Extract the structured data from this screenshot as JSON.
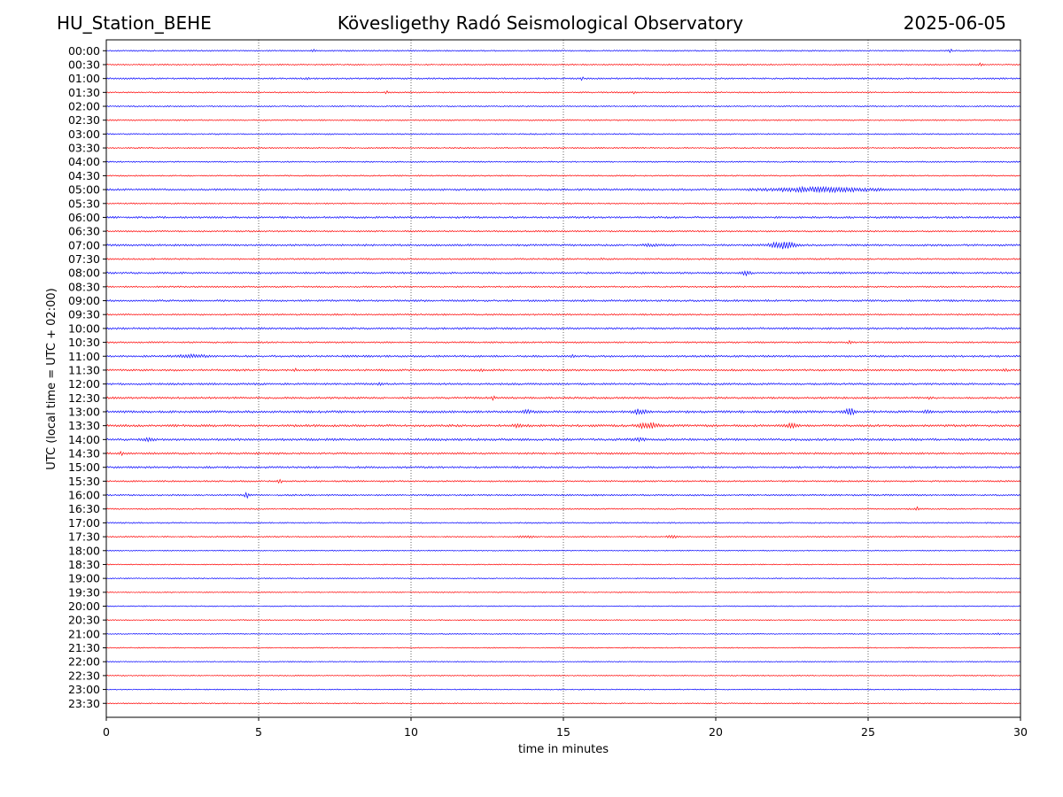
{
  "header": {
    "station": "HU_Station_BEHE",
    "title": "Kövesligethy Radó Seismological Observatory",
    "date": "2025-06-05"
  },
  "chart_data": {
    "type": "line",
    "chart_kind": "helicorder",
    "xlabel": "time in minutes",
    "ylabel": "UTC (local time = UTC + 02:00)",
    "xlim": [
      0,
      30
    ],
    "x_ticks": [
      "0",
      "5",
      "10",
      "15",
      "20",
      "25",
      "30"
    ],
    "x_grid": "dotted vertical lines at 5, 10, 15, 20, 25",
    "line_colors": [
      "#0000ff",
      "#ff0000"
    ],
    "color_rule": "alternating per row: full hours blue, half hours red",
    "rows": [
      "00:00",
      "00:30",
      "01:00",
      "01:30",
      "02:00",
      "02:30",
      "03:00",
      "03:30",
      "04:00",
      "04:30",
      "05:00",
      "05:30",
      "06:00",
      "06:30",
      "07:00",
      "07:30",
      "08:00",
      "08:30",
      "09:00",
      "09:30",
      "10:00",
      "10:30",
      "11:00",
      "11:30",
      "12:00",
      "12:30",
      "13:00",
      "13:30",
      "14:00",
      "14:30",
      "15:00",
      "15:30",
      "16:00",
      "16:30",
      "17:00",
      "17:30",
      "18:00",
      "18:30",
      "19:00",
      "19:30",
      "20:00",
      "20:30",
      "21:00",
      "21:30",
      "22:00",
      "22:30",
      "23:00",
      "23:30"
    ],
    "base_noise": [
      1.5,
      1.5,
      1.8,
      1.5,
      1.5,
      1.5,
      1.5,
      1.5,
      1.5,
      1.5,
      2.2,
      1.5,
      2.2,
      1.8,
      2.2,
      1.8,
      2.2,
      1.8,
      2.2,
      1.8,
      2.2,
      1.8,
      2.2,
      2.2,
      2.2,
      2.2,
      2.6,
      2.6,
      2.6,
      2.2,
      2.2,
      1.8,
      1.8,
      1.5,
      1.5,
      1.5,
      1.2,
      1.2,
      1.2,
      1.2,
      1.2,
      1.2,
      1.2,
      1.2,
      1.2,
      1.2,
      1.2,
      1.2
    ],
    "events": [
      {
        "row": "00:00",
        "t": 6.8,
        "amp": 3,
        "dur": 0.1
      },
      {
        "row": "00:00",
        "t": 27.7,
        "amp": 4,
        "dur": 0.1
      },
      {
        "row": "00:30",
        "t": 28.7,
        "amp": 3,
        "dur": 0.1
      },
      {
        "row": "01:00",
        "t": 6.6,
        "amp": 3,
        "dur": 0.1
      },
      {
        "row": "01:00",
        "t": 15.6,
        "amp": 3,
        "dur": 0.1
      },
      {
        "row": "01:30",
        "t": 9.2,
        "amp": 3,
        "dur": 0.1
      },
      {
        "row": "01:30",
        "t": 17.3,
        "amp": 2,
        "dur": 0.1
      },
      {
        "row": "05:00",
        "t": 23.5,
        "amp": 5,
        "dur": 3.3
      },
      {
        "row": "07:00",
        "t": 17.9,
        "amp": 2,
        "dur": 0.6
      },
      {
        "row": "07:00",
        "t": 22.2,
        "amp": 9,
        "dur": 0.8
      },
      {
        "row": "07:30",
        "t": 16.3,
        "amp": 2,
        "dur": 0.2
      },
      {
        "row": "08:00",
        "t": 21.0,
        "amp": 4,
        "dur": 0.3
      },
      {
        "row": "10:30",
        "t": 24.4,
        "amp": 3,
        "dur": 0.1
      },
      {
        "row": "11:00",
        "t": 2.8,
        "amp": 3,
        "dur": 1.0
      },
      {
        "row": "11:00",
        "t": 15.3,
        "amp": 3,
        "dur": 0.1
      },
      {
        "row": "11:30",
        "t": 6.2,
        "amp": 4,
        "dur": 0.1
      },
      {
        "row": "11:30",
        "t": 12.3,
        "amp": 3,
        "dur": 0.1
      },
      {
        "row": "11:30",
        "t": 29.5,
        "amp": 3,
        "dur": 0.1
      },
      {
        "row": "12:00",
        "t": 9.0,
        "amp": 4,
        "dur": 0.1
      },
      {
        "row": "12:30",
        "t": 12.7,
        "amp": 4,
        "dur": 0.1
      },
      {
        "row": "12:30",
        "t": 27.0,
        "amp": 3,
        "dur": 0.1
      },
      {
        "row": "13:00",
        "t": 13.8,
        "amp": 3,
        "dur": 0.3
      },
      {
        "row": "13:00",
        "t": 17.5,
        "amp": 6,
        "dur": 0.4
      },
      {
        "row": "13:00",
        "t": 24.4,
        "amp": 8,
        "dur": 0.3
      },
      {
        "row": "13:00",
        "t": 26.9,
        "amp": 3,
        "dur": 0.2
      },
      {
        "row": "13:30",
        "t": 13.5,
        "amp": 3,
        "dur": 0.4
      },
      {
        "row": "13:30",
        "t": 17.8,
        "amp": 6,
        "dur": 0.7
      },
      {
        "row": "13:30",
        "t": 22.5,
        "amp": 4,
        "dur": 0.4
      },
      {
        "row": "14:00",
        "t": 1.4,
        "amp": 3,
        "dur": 0.3
      },
      {
        "row": "14:00",
        "t": 17.5,
        "amp": 3,
        "dur": 0.4
      },
      {
        "row": "14:30",
        "t": 0.5,
        "amp": 4,
        "dur": 0.1
      },
      {
        "row": "15:30",
        "t": 5.7,
        "amp": 6,
        "dur": 0.1
      },
      {
        "row": "16:00",
        "t": 4.6,
        "amp": 9,
        "dur": 0.1
      },
      {
        "row": "16:30",
        "t": 26.6,
        "amp": 4,
        "dur": 0.1
      },
      {
        "row": "17:30",
        "t": 13.8,
        "amp": 2,
        "dur": 0.6
      },
      {
        "row": "17:30",
        "t": 18.6,
        "amp": 3,
        "dur": 0.4
      },
      {
        "row": "21:00",
        "t": 29.3,
        "amp": 2,
        "dur": 0.1
      }
    ]
  }
}
